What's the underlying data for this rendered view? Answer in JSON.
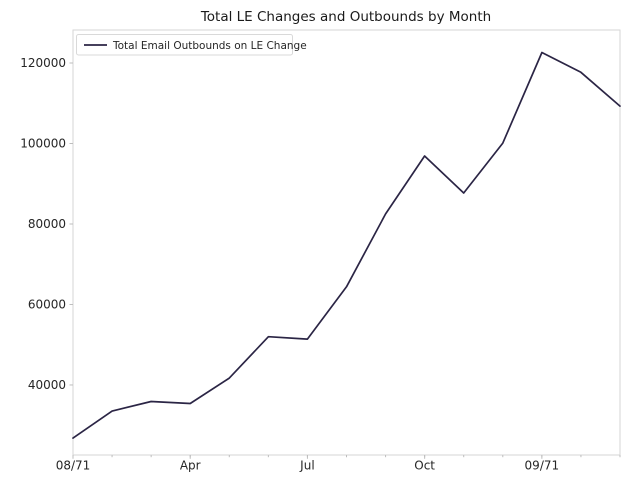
{
  "chart_data": {
    "type": "line",
    "title": "Total LE Changes and Outbounds by Month",
    "x": [
      0,
      1,
      2,
      3,
      4,
      5,
      6,
      7,
      8,
      9,
      10,
      11,
      12,
      13,
      14
    ],
    "series": [
      {
        "name": "Total Email Outbounds on LE Change",
        "values": [
          26800,
          33500,
          35900,
          35400,
          41700,
          52000,
          51400,
          64400,
          82500,
          96900,
          87700,
          100100,
          122600,
          117700,
          109300
        ]
      }
    ],
    "x_major_ticks": [
      {
        "pos": 0,
        "label": "08/71"
      },
      {
        "pos": 3,
        "label": "Apr"
      },
      {
        "pos": 6,
        "label": "Jul"
      },
      {
        "pos": 9,
        "label": "Oct"
      },
      {
        "pos": 12,
        "label": "09/71"
      }
    ],
    "x_minor_tick_every": 1,
    "xlim": [
      0,
      14
    ],
    "ylim": [
      22600,
      128200
    ],
    "y_ticks": [
      40000,
      60000,
      80000,
      100000,
      120000
    ],
    "y_tick_labels": [
      "40000",
      "60000",
      "80000",
      "100000",
      "120000"
    ],
    "grid": false,
    "legend_position": "upper left",
    "colors": {
      "line": "#2b2545",
      "text": "#262626",
      "spine": "#d6d6d6",
      "tick": "#bdbdbd",
      "background": "#ffffff",
      "legend_border": "#d9d9d9",
      "legend_fill": "#ffffff"
    }
  }
}
